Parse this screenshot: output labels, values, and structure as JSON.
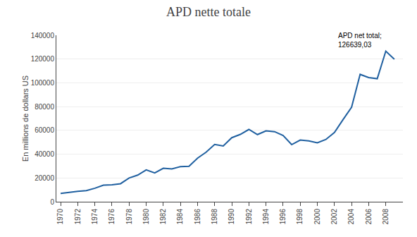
{
  "chart_data": {
    "type": "line",
    "title": "APD nette totale",
    "ylabel": "En millions de dollars US",
    "color": "#2060a0",
    "x": [
      1970,
      1971,
      1972,
      1973,
      1974,
      1975,
      1976,
      1977,
      1978,
      1979,
      1980,
      1981,
      1982,
      1983,
      1984,
      1985,
      1986,
      1987,
      1988,
      1989,
      1990,
      1991,
      1992,
      1993,
      1994,
      1995,
      1996,
      1997,
      1998,
      1999,
      2000,
      2001,
      2002,
      2003,
      2004,
      2005,
      2006,
      2007,
      2008,
      2009
    ],
    "values": [
      7010,
      7640,
      8700,
      9380,
      11320,
      13920,
      14300,
      15170,
      19940,
      22370,
      26810,
      24210,
      28170,
      27650,
      29490,
      29850,
      36660,
      41630,
      48120,
      46840,
      53850,
      56630,
      60800,
      56500,
      59620,
      58930,
      55730,
      48040,
      51870,
      51190,
      49580,
      52410,
      58290,
      69020,
      79490,
      107110,
      104400,
      103490,
      126639,
      119800
    ],
    "xlim": [
      1969.5,
      2010.0
    ],
    "xticks": [
      1970,
      1972,
      1974,
      1976,
      1978,
      1980,
      1982,
      1984,
      1986,
      1988,
      1990,
      1992,
      1994,
      1996,
      1998,
      2000,
      2002,
      2004,
      2006,
      2008
    ],
    "ylim": [
      0,
      140000
    ],
    "yticks": [
      0,
      20000,
      40000,
      60000,
      80000,
      100000,
      120000,
      140000
    ],
    "grid": true,
    "annotations": [
      {
        "text": "APD net total;\n126639,03",
        "x": 2008,
        "y": 126639
      }
    ]
  }
}
